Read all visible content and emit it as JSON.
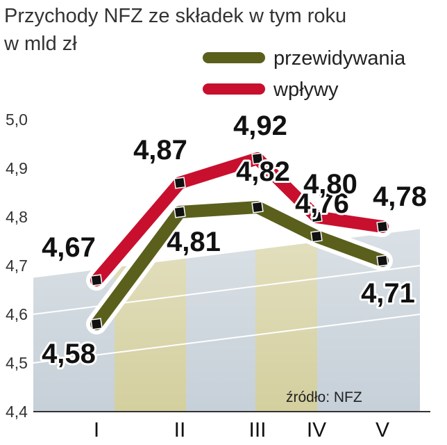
{
  "chart_data": {
    "type": "line",
    "title": "Przychody NFZ ze składek w tym roku",
    "subtitle": "w mld zł",
    "categories": [
      "I",
      "II",
      "III",
      "IV",
      "V"
    ],
    "series": [
      {
        "name": "przewidywania",
        "values": [
          4.58,
          4.81,
          4.82,
          4.76,
          4.71
        ],
        "labels": [
          "4,58",
          "4,81",
          "4,82",
          "4,76",
          "4,71"
        ],
        "color": "#5a5f1c"
      },
      {
        "name": "wpływy",
        "values": [
          4.67,
          4.87,
          4.92,
          4.8,
          4.78
        ],
        "labels": [
          "4,67",
          "4,87",
          "4,92",
          "4,80",
          "4,78"
        ],
        "color": "#c8102e"
      }
    ],
    "ylim": [
      4.4,
      5.0
    ],
    "yticks": [
      "4,4",
      "4,5",
      "4,6",
      "4,7",
      "4,8",
      "4,9",
      "5,0"
    ],
    "grid": true,
    "legend": "top-right",
    "source": "źródło: NFZ"
  }
}
